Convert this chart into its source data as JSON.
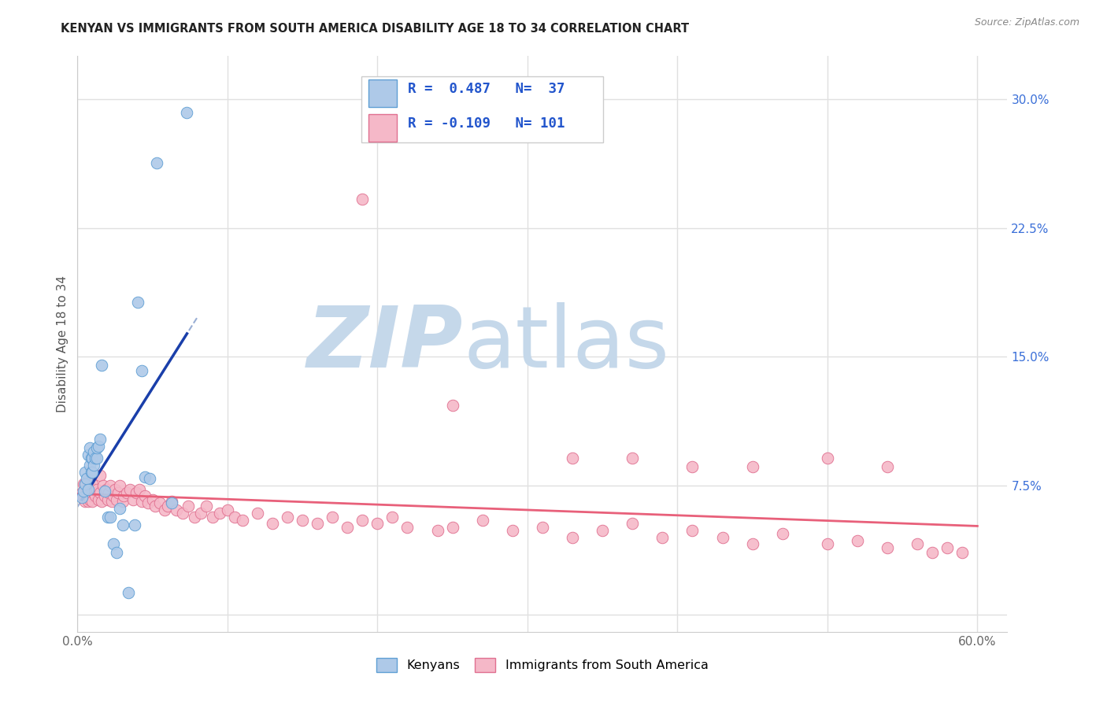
{
  "title": "KENYAN VS IMMIGRANTS FROM SOUTH AMERICA DISABILITY AGE 18 TO 34 CORRELATION CHART",
  "source": "Source: ZipAtlas.com",
  "ylabel": "Disability Age 18 to 34",
  "xlim": [
    0.0,
    0.62
  ],
  "ylim": [
    -0.01,
    0.325
  ],
  "xticks": [
    0.0,
    0.1,
    0.2,
    0.3,
    0.4,
    0.5,
    0.6
  ],
  "xticklabels": [
    "0.0%",
    "",
    "",
    "",
    "",
    "",
    "60.0%"
  ],
  "yticks": [
    0.0,
    0.075,
    0.15,
    0.225,
    0.3
  ],
  "yticklabels": [
    "",
    "7.5%",
    "15.0%",
    "22.5%",
    "30.0%"
  ],
  "r_kenya": 0.487,
  "n_kenya": 37,
  "r_southamerica": -0.109,
  "n_southamerica": 101,
  "kenya_color": "#aec9e8",
  "kenya_edge_color": "#5f9fd4",
  "southamerica_color": "#f5b8c8",
  "southamerica_edge_color": "#e07090",
  "kenya_line_color": "#1a3faa",
  "southamerica_line_color": "#e8607a",
  "dashed_line_color": "#99aed4",
  "watermark_zip_color": "#c5d8ea",
  "watermark_atlas_color": "#c5d8ea",
  "background_color": "#ffffff",
  "grid_color": "#e0e0e0",
  "kenya_x": [
    0.003,
    0.004,
    0.005,
    0.005,
    0.006,
    0.007,
    0.007,
    0.008,
    0.008,
    0.009,
    0.009,
    0.01,
    0.01,
    0.011,
    0.011,
    0.012,
    0.013,
    0.013,
    0.014,
    0.015,
    0.016,
    0.018,
    0.02,
    0.022,
    0.024,
    0.026,
    0.028,
    0.03,
    0.034,
    0.038,
    0.04,
    0.043,
    0.045,
    0.048,
    0.053,
    0.063,
    0.073
  ],
  "kenya_y": [
    0.068,
    0.072,
    0.076,
    0.083,
    0.079,
    0.073,
    0.093,
    0.087,
    0.097,
    0.083,
    0.091,
    0.083,
    0.091,
    0.087,
    0.095,
    0.091,
    0.091,
    0.097,
    0.098,
    0.102,
    0.145,
    0.072,
    0.057,
    0.057,
    0.041,
    0.036,
    0.062,
    0.052,
    0.013,
    0.052,
    0.182,
    0.142,
    0.08,
    0.079,
    0.263,
    0.065,
    0.292
  ],
  "southamerica_x": [
    0.003,
    0.004,
    0.004,
    0.005,
    0.005,
    0.006,
    0.006,
    0.007,
    0.007,
    0.007,
    0.008,
    0.008,
    0.009,
    0.009,
    0.01,
    0.01,
    0.011,
    0.012,
    0.013,
    0.014,
    0.015,
    0.015,
    0.016,
    0.017,
    0.018,
    0.019,
    0.02,
    0.021,
    0.022,
    0.023,
    0.024,
    0.025,
    0.026,
    0.027,
    0.028,
    0.03,
    0.031,
    0.033,
    0.035,
    0.037,
    0.039,
    0.041,
    0.043,
    0.045,
    0.047,
    0.05,
    0.052,
    0.055,
    0.058,
    0.06,
    0.063,
    0.066,
    0.07,
    0.074,
    0.078,
    0.082,
    0.086,
    0.09,
    0.095,
    0.1,
    0.105,
    0.11,
    0.12,
    0.13,
    0.14,
    0.15,
    0.16,
    0.17,
    0.18,
    0.19,
    0.2,
    0.21,
    0.22,
    0.24,
    0.25,
    0.27,
    0.29,
    0.31,
    0.33,
    0.35,
    0.37,
    0.39,
    0.41,
    0.43,
    0.45,
    0.47,
    0.5,
    0.52,
    0.54,
    0.56,
    0.58,
    0.33,
    0.37,
    0.41,
    0.45,
    0.5,
    0.54,
    0.57,
    0.59,
    0.19,
    0.25
  ],
  "southamerica_y": [
    0.071,
    0.068,
    0.076,
    0.066,
    0.076,
    0.069,
    0.073,
    0.066,
    0.071,
    0.079,
    0.067,
    0.075,
    0.069,
    0.073,
    0.066,
    0.076,
    0.071,
    0.069,
    0.073,
    0.067,
    0.071,
    0.081,
    0.066,
    0.075,
    0.069,
    0.073,
    0.067,
    0.071,
    0.075,
    0.066,
    0.069,
    0.073,
    0.067,
    0.071,
    0.075,
    0.066,
    0.069,
    0.071,
    0.073,
    0.067,
    0.071,
    0.073,
    0.066,
    0.069,
    0.065,
    0.067,
    0.063,
    0.065,
    0.061,
    0.063,
    0.066,
    0.061,
    0.059,
    0.063,
    0.057,
    0.059,
    0.063,
    0.057,
    0.059,
    0.061,
    0.057,
    0.055,
    0.059,
    0.053,
    0.057,
    0.055,
    0.053,
    0.057,
    0.051,
    0.055,
    0.053,
    0.057,
    0.051,
    0.049,
    0.051,
    0.055,
    0.049,
    0.051,
    0.045,
    0.049,
    0.053,
    0.045,
    0.049,
    0.045,
    0.041,
    0.047,
    0.041,
    0.043,
    0.039,
    0.041,
    0.039,
    0.091,
    0.091,
    0.086,
    0.086,
    0.091,
    0.086,
    0.036,
    0.036,
    0.242,
    0.122
  ]
}
